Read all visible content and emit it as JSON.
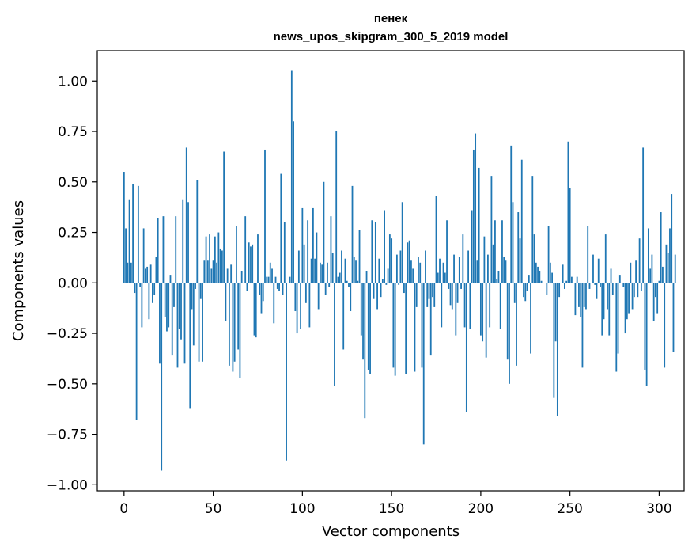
{
  "chart_data": {
    "type": "bar",
    "title": "пенек",
    "subtitle": "news_upos_skipgram_300_5_2019 model",
    "xlabel": "Vector components",
    "ylabel": "Components values",
    "xlim": [
      -15,
      314
    ],
    "ylim": [
      -1.03,
      1.15
    ],
    "x_ticks": [
      0,
      50,
      100,
      150,
      200,
      250,
      300
    ],
    "y_ticks": [
      1.0,
      0.75,
      0.5,
      0.25,
      0.0,
      -0.25,
      -0.5,
      -0.75,
      -1.0
    ],
    "x_tick_labels": [
      "0",
      "50",
      "100",
      "150",
      "200",
      "250",
      "300"
    ],
    "y_tick_labels": [
      "1.00",
      "0.75",
      "0.50",
      "0.25",
      "0.00",
      "−0.25",
      "−0.50",
      "−0.75",
      "−1.00"
    ],
    "bar_color": "#1f77b4",
    "values": [
      0.55,
      0.27,
      0.1,
      0.41,
      0.1,
      0.49,
      -0.05,
      -0.68,
      0.48,
      -0.02,
      -0.22,
      0.27,
      0.07,
      0.08,
      -0.18,
      0.09,
      -0.1,
      -0.06,
      0.13,
      0.32,
      -0.4,
      -0.93,
      0.33,
      -0.17,
      -0.24,
      -0.22,
      0.04,
      -0.36,
      -0.12,
      0.33,
      -0.42,
      -0.23,
      -0.28,
      0.41,
      -0.4,
      0.67,
      0.4,
      -0.62,
      -0.13,
      -0.31,
      -0.03,
      0.51,
      -0.39,
      -0.08,
      -0.39,
      0.11,
      0.23,
      0.11,
      0.24,
      0.07,
      0.11,
      0.23,
      0.1,
      0.25,
      0.17,
      0.16,
      0.65,
      -0.19,
      0.07,
      -0.41,
      0.09,
      -0.44,
      -0.39,
      0.28,
      -0.33,
      -0.47,
      0.06,
      0.0,
      0.33,
      -0.04,
      0.2,
      0.18,
      0.19,
      -0.26,
      -0.27,
      0.24,
      -0.06,
      -0.15,
      -0.09,
      0.66,
      0.03,
      0.03,
      0.1,
      0.07,
      -0.2,
      0.03,
      -0.03,
      -0.04,
      0.54,
      -0.06,
      0.3,
      -0.88,
      0.0,
      0.03,
      1.05,
      0.8,
      -0.14,
      -0.25,
      0.16,
      -0.23,
      0.37,
      0.19,
      -0.1,
      0.31,
      -0.22,
      0.12,
      0.37,
      0.12,
      0.25,
      -0.13,
      0.1,
      0.09,
      0.5,
      -0.06,
      0.1,
      -0.02,
      0.33,
      0.15,
      -0.51,
      0.75,
      0.03,
      0.05,
      0.16,
      -0.33,
      0.12,
      0.01,
      -0.02,
      -0.14,
      0.48,
      0.13,
      0.11,
      0.01,
      0.26,
      -0.26,
      -0.38,
      -0.67,
      0.06,
      -0.43,
      -0.45,
      0.31,
      -0.08,
      0.3,
      -0.13,
      0.12,
      -0.07,
      0.02,
      0.36,
      -0.01,
      0.07,
      0.24,
      0.22,
      -0.42,
      -0.46,
      0.14,
      -0.01,
      0.16,
      0.4,
      -0.05,
      -0.45,
      0.2,
      0.21,
      0.11,
      0.07,
      -0.44,
      -0.12,
      0.13,
      0.1,
      -0.42,
      -0.8,
      0.16,
      -0.12,
      -0.08,
      -0.36,
      -0.07,
      -0.12,
      0.43,
      0.05,
      0.12,
      -0.22,
      0.1,
      0.05,
      0.31,
      -0.03,
      -0.11,
      -0.13,
      0.14,
      -0.26,
      -0.1,
      0.13,
      -0.03,
      0.24,
      -0.22,
      -0.64,
      0.16,
      -0.23,
      0.36,
      0.66,
      0.74,
      0.11,
      0.57,
      -0.26,
      -0.29,
      0.23,
      -0.37,
      0.14,
      -0.22,
      0.53,
      0.19,
      0.31,
      0.02,
      0.06,
      -0.23,
      0.31,
      0.13,
      0.11,
      -0.38,
      -0.5,
      0.68,
      0.4,
      -0.1,
      -0.41,
      0.35,
      0.22,
      0.61,
      -0.07,
      -0.09,
      -0.04,
      0.04,
      -0.35,
      0.53,
      0.24,
      0.1,
      0.08,
      0.06,
      0.01,
      0.0,
      0.0,
      -0.06,
      0.28,
      0.1,
      0.05,
      -0.57,
      -0.29,
      -0.66,
      -0.07,
      0.0,
      0.09,
      -0.03,
      0.01,
      0.7,
      0.47,
      0.03,
      0.0,
      -0.16,
      0.03,
      -0.12,
      -0.17,
      -0.42,
      -0.12,
      -0.13,
      0.28,
      -0.03,
      0.0,
      0.14,
      -0.01,
      -0.08,
      0.12,
      -0.02,
      -0.26,
      -0.18,
      0.24,
      -0.13,
      -0.26,
      0.07,
      -0.06,
      0.0,
      -0.44,
      -0.35,
      0.04,
      0.0,
      -0.02,
      -0.25,
      -0.18,
      -0.15,
      0.1,
      -0.13,
      -0.07,
      0.11,
      -0.07,
      0.22,
      -0.04,
      0.67,
      -0.43,
      -0.51,
      0.27,
      0.07,
      0.14,
      -0.19,
      -0.07,
      -0.15,
      0.01,
      0.35,
      0.08,
      -0.42,
      0.19,
      0.15,
      0.27,
      0.44,
      -0.34,
      0.14
    ]
  }
}
